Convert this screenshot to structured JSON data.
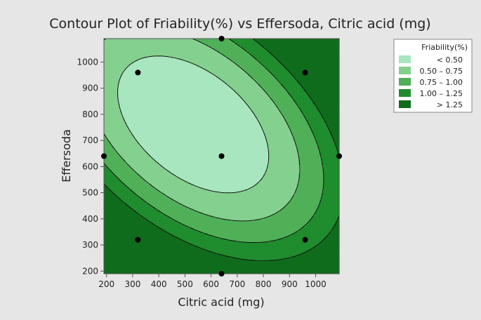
{
  "chart_data": {
    "type": "contour",
    "title": "Contour Plot of Friability(%) vs Effersoda, Citric acid (mg)",
    "xlabel": "Citric acid (mg)",
    "ylabel": "Effersoda",
    "xlim": [
      190,
      1090
    ],
    "ylim": [
      190,
      1090
    ],
    "xticks": [
      200,
      300,
      400,
      500,
      600,
      700,
      800,
      900,
      1000
    ],
    "yticks": [
      200,
      300,
      400,
      500,
      600,
      700,
      800,
      900,
      1000
    ],
    "legend": {
      "title": "Friability(%)",
      "placement": "top-right",
      "entries": [
        {
          "label": "< 0.50",
          "color": "#a8e6bf"
        },
        {
          "label": "0.50 – 0.75",
          "color": "#84d08e"
        },
        {
          "label": "0.75 – 1.00",
          "color": "#50b058"
        },
        {
          "label": "1.00 – 1.25",
          "color": "#1f8c2d"
        },
        {
          "label": "> 1.25",
          "color": "#0f6c1c"
        }
      ]
    },
    "levels": [
      0.5,
      0.75,
      1.0,
      1.25
    ],
    "design_points": [
      {
        "x": 320,
        "y": 960
      },
      {
        "x": 960,
        "y": 960
      },
      {
        "x": 640,
        "y": 1090
      },
      {
        "x": 190,
        "y": 640
      },
      {
        "x": 640,
        "y": 640
      },
      {
        "x": 1090,
        "y": 640
      },
      {
        "x": 320,
        "y": 320
      },
      {
        "x": 960,
        "y": 320
      },
      {
        "x": 640,
        "y": 190
      }
    ]
  }
}
